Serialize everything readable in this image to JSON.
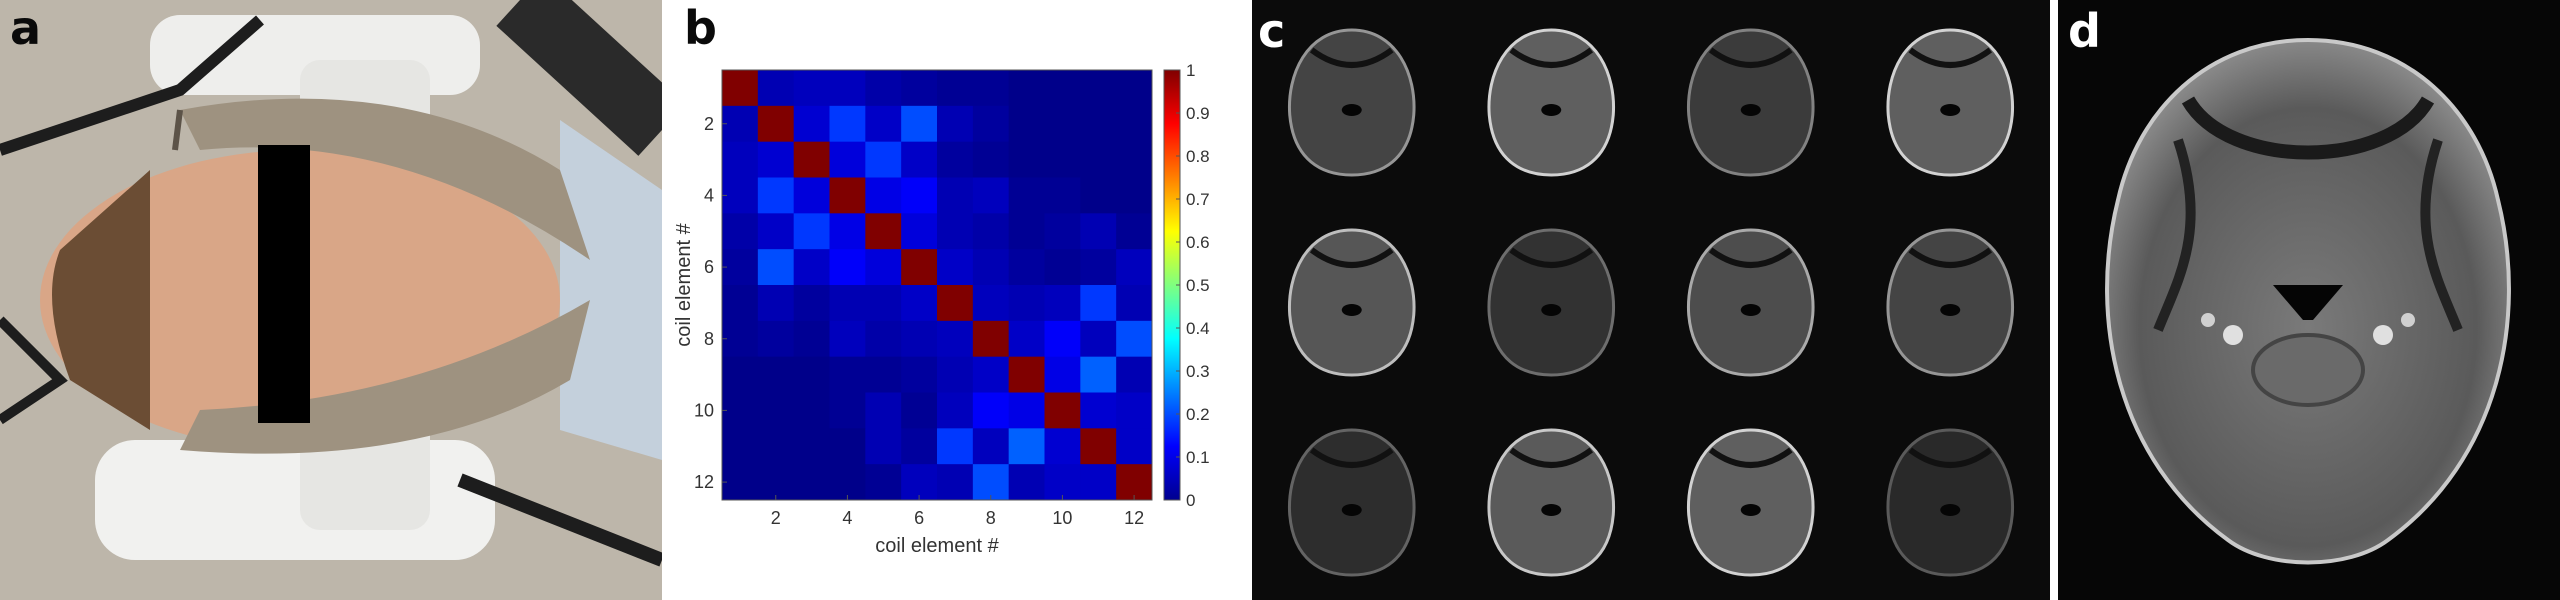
{
  "panels": {
    "a": {
      "label": "a"
    },
    "b": {
      "label": "b"
    },
    "c": {
      "label": "c"
    },
    "d": {
      "label": "d"
    }
  },
  "chart_data": {
    "type": "heatmap",
    "xlabel": "coil element #",
    "ylabel": "coil element #",
    "x_ticks": [
      "2",
      "4",
      "6",
      "8",
      "10",
      "12"
    ],
    "y_ticks": [
      "2",
      "4",
      "6",
      "8",
      "10",
      "12"
    ],
    "colorbar": {
      "ticks": [
        "0",
        "0.1",
        "0.2",
        "0.3",
        "0.4",
        "0.5",
        "0.6",
        "0.7",
        "0.8",
        "0.9",
        "1"
      ],
      "range": [
        0,
        1
      ],
      "colormap": "jet"
    },
    "matrix": [
      [
        1.0,
        0.05,
        0.06,
        0.06,
        0.04,
        0.03,
        0.02,
        0.02,
        0.01,
        0.01,
        0.01,
        0.01
      ],
      [
        0.05,
        1.0,
        0.08,
        0.18,
        0.07,
        0.2,
        0.05,
        0.03,
        0.01,
        0.01,
        0.01,
        0.01
      ],
      [
        0.06,
        0.08,
        1.0,
        0.09,
        0.18,
        0.07,
        0.03,
        0.02,
        0.01,
        0.01,
        0.01,
        0.01
      ],
      [
        0.06,
        0.18,
        0.09,
        1.0,
        0.1,
        0.12,
        0.05,
        0.06,
        0.02,
        0.02,
        0.01,
        0.01
      ],
      [
        0.04,
        0.07,
        0.18,
        0.1,
        1.0,
        0.09,
        0.05,
        0.04,
        0.02,
        0.03,
        0.05,
        0.02
      ],
      [
        0.03,
        0.2,
        0.07,
        0.12,
        0.09,
        1.0,
        0.07,
        0.05,
        0.03,
        0.02,
        0.03,
        0.06
      ],
      [
        0.02,
        0.05,
        0.03,
        0.05,
        0.05,
        0.07,
        1.0,
        0.06,
        0.05,
        0.06,
        0.18,
        0.05
      ],
      [
        0.02,
        0.03,
        0.02,
        0.06,
        0.04,
        0.05,
        0.06,
        1.0,
        0.07,
        0.12,
        0.06,
        0.2
      ],
      [
        0.01,
        0.01,
        0.01,
        0.02,
        0.02,
        0.03,
        0.05,
        0.07,
        1.0,
        0.1,
        0.22,
        0.05
      ],
      [
        0.01,
        0.01,
        0.01,
        0.02,
        0.05,
        0.02,
        0.06,
        0.12,
        0.1,
        1.0,
        0.08,
        0.07
      ],
      [
        0.01,
        0.01,
        0.01,
        0.01,
        0.05,
        0.03,
        0.18,
        0.06,
        0.22,
        0.08,
        1.0,
        0.07
      ],
      [
        0.01,
        0.01,
        0.01,
        0.01,
        0.02,
        0.06,
        0.05,
        0.2,
        0.05,
        0.07,
        0.07,
        1.0
      ]
    ]
  },
  "coil_images": {
    "intensities": [
      0.55,
      0.85,
      0.45,
      0.85,
      0.75,
      0.35,
      0.65,
      0.55,
      0.3,
      0.8,
      0.85,
      0.25
    ]
  },
  "colors": {
    "panel_label_dark": "#0a0a0a",
    "panel_label_light": "#ffffff"
  }
}
